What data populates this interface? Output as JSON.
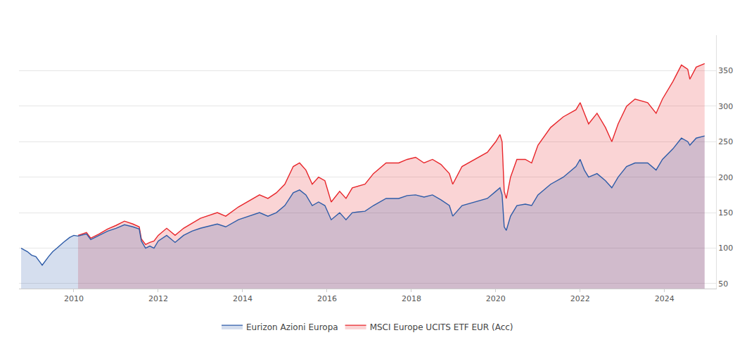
{
  "chart_data": {
    "type": "line",
    "x": [
      2008.75,
      2008.9,
      2009.0,
      2009.1,
      2009.2,
      2009.25,
      2009.4,
      2009.5,
      2009.6,
      2009.75,
      2009.9,
      2010.0,
      2010.1,
      2010.3,
      2010.4,
      2010.6,
      2010.8,
      2011.0,
      2011.2,
      2011.4,
      2011.55,
      2011.6,
      2011.7,
      2011.8,
      2011.9,
      2012.0,
      2012.2,
      2012.4,
      2012.6,
      2012.8,
      2013.0,
      2013.4,
      2013.6,
      2013.9,
      2014.2,
      2014.4,
      2014.6,
      2014.8,
      2015.0,
      2015.2,
      2015.35,
      2015.5,
      2015.65,
      2015.8,
      2015.95,
      2016.1,
      2016.3,
      2016.45,
      2016.6,
      2016.9,
      2017.1,
      2017.4,
      2017.7,
      2017.9,
      2018.1,
      2018.3,
      2018.5,
      2018.7,
      2018.9,
      2018.98,
      2019.2,
      2019.5,
      2019.8,
      2020.0,
      2020.1,
      2020.15,
      2020.2,
      2020.25,
      2020.35,
      2020.5,
      2020.7,
      2020.85,
      2021.0,
      2021.3,
      2021.6,
      2021.9,
      2022.0,
      2022.1,
      2022.2,
      2022.4,
      2022.6,
      2022.75,
      2022.9,
      2023.1,
      2023.3,
      2023.6,
      2023.8,
      2023.95,
      2024.2,
      2024.4,
      2024.55,
      2024.6,
      2024.75,
      2024.95
    ],
    "series": [
      {
        "name": "Eurizon Azioni Europa",
        "color": "#2e5ca8",
        "values": [
          100,
          95,
          90,
          88,
          80,
          76,
          88,
          95,
          100,
          108,
          115,
          118,
          117,
          120,
          112,
          118,
          124,
          128,
          133,
          130,
          127,
          110,
          100,
          103,
          100,
          110,
          118,
          108,
          118,
          124,
          128,
          134,
          130,
          140,
          146,
          150,
          145,
          150,
          160,
          178,
          182,
          175,
          160,
          165,
          160,
          140,
          150,
          140,
          150,
          152,
          160,
          170,
          170,
          174,
          175,
          172,
          175,
          168,
          160,
          145,
          160,
          165,
          170,
          180,
          185,
          175,
          130,
          125,
          145,
          160,
          162,
          160,
          175,
          190,
          200,
          215,
          225,
          210,
          200,
          205,
          195,
          185,
          200,
          215,
          220,
          220,
          210,
          225,
          240,
          255,
          250,
          245,
          255,
          258
        ]
      },
      {
        "name": "MSCI Europe UCITS ETF EUR (Acc)",
        "color": "#e8262b",
        "values": [
          null,
          null,
          null,
          null,
          null,
          null,
          null,
          null,
          null,
          null,
          null,
          null,
          118,
          122,
          114,
          120,
          127,
          132,
          138,
          134,
          130,
          113,
          105,
          108,
          110,
          118,
          128,
          118,
          128,
          135,
          142,
          150,
          145,
          158,
          168,
          175,
          170,
          178,
          190,
          215,
          220,
          210,
          190,
          200,
          195,
          165,
          180,
          170,
          185,
          190,
          205,
          220,
          220,
          225,
          228,
          220,
          225,
          218,
          205,
          190,
          215,
          225,
          235,
          250,
          260,
          250,
          180,
          170,
          200,
          225,
          225,
          220,
          245,
          270,
          285,
          295,
          305,
          290,
          275,
          290,
          270,
          250,
          275,
          300,
          310,
          305,
          290,
          310,
          335,
          358,
          352,
          338,
          355,
          360
        ]
      }
    ],
    "xlim": [
      2008.7,
      2025.22
    ],
    "xticks": [
      2010,
      2012,
      2014,
      2016,
      2018,
      2020,
      2022,
      2024
    ],
    "ylim": [
      43,
      400
    ],
    "yticks": [
      50,
      100,
      150,
      200,
      250,
      300,
      350
    ],
    "grid": true,
    "legend": "bottom"
  }
}
